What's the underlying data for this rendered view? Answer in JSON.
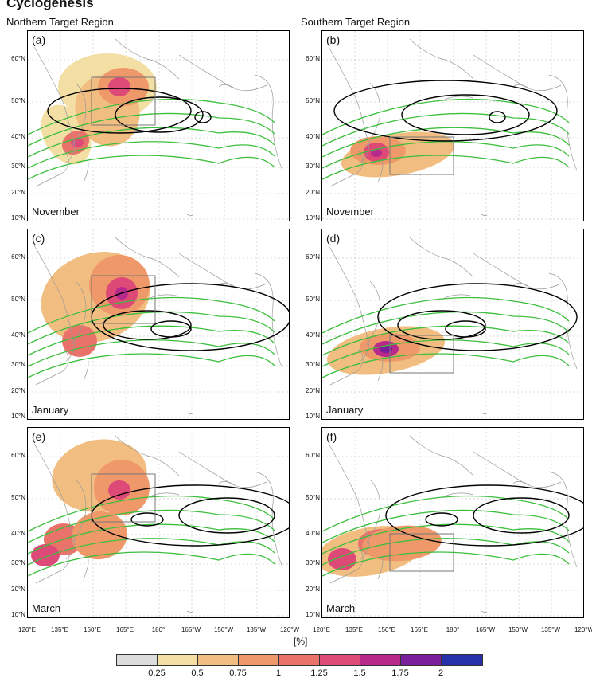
{
  "title": "Cyclogenesis",
  "columns": [
    "Northern Target Region",
    "Southern Target Region"
  ],
  "panels": [
    {
      "label": "(a)",
      "month": "November"
    },
    {
      "label": "(b)",
      "month": "November"
    },
    {
      "label": "(c)",
      "month": "January"
    },
    {
      "label": "(d)",
      "month": "January"
    },
    {
      "label": "(e)",
      "month": "March"
    },
    {
      "label": "(f)",
      "month": "March"
    }
  ],
  "lat_ticks": [
    "60°N",
    "50°N",
    "40°N",
    "30°N",
    "20°N",
    "10°N"
  ],
  "lon_ticks": [
    "120°E",
    "135°E",
    "150°E",
    "165°E",
    "180°",
    "165°W",
    "150°W",
    "135°W",
    "120°W"
  ],
  "colorbar": {
    "unit": "[%]",
    "labels": [
      "0.25",
      "0.5",
      "0.75",
      "1",
      "1.25",
      "1.5",
      "1.75",
      "2"
    ],
    "colors": [
      "#dcdcdc",
      "#f3dfa4",
      "#f2bd80",
      "#ef996a",
      "#e9736a",
      "#dd4a78",
      "#b8298c",
      "#7b1e9b",
      "#2831a8"
    ]
  },
  "colors": {
    "box": "#777777",
    "green_contour": "#3cbf3c",
    "black_contour": "#000000",
    "coast": "#9a9a9a"
  }
}
